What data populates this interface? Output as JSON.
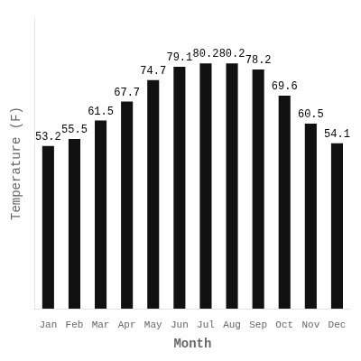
{
  "chart_data": {
    "type": "bar",
    "categories": [
      "Jan",
      "Feb",
      "Mar",
      "Apr",
      "May",
      "Jun",
      "Jul",
      "Aug",
      "Sep",
      "Oct",
      "Nov",
      "Dec"
    ],
    "values": [
      53.2,
      55.5,
      61.5,
      67.7,
      74.7,
      79.1,
      80.2,
      80.2,
      78.2,
      69.6,
      60.5,
      54.1
    ],
    "color": "#111111",
    "xlabel": "Month",
    "ylabel": "Temperature (F)",
    "ylim": [
      0,
      95
    ],
    "grid": false,
    "data_labels": true,
    "tick_labels": "x"
  }
}
